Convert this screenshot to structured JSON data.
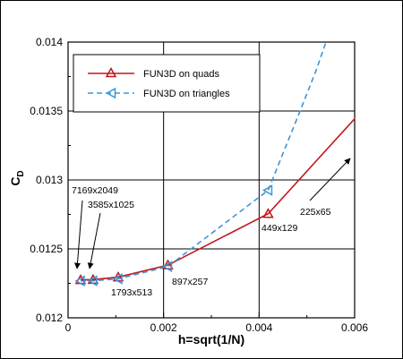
{
  "chart_data": {
    "type": "line",
    "xlabel": "h=sqrt(1/N)",
    "ylabel_main": "C",
    "ylabel_sub": "D",
    "xlim": [
      0,
      0.006
    ],
    "ylim": [
      0.012,
      0.014
    ],
    "x_ticks": [
      0,
      0.002,
      0.004,
      0.006
    ],
    "x_tick_labels": [
      "0",
      "0.002",
      "0.004",
      "0.006"
    ],
    "y_ticks": [
      0.012,
      0.0125,
      0.013,
      0.0135,
      0.014
    ],
    "y_tick_labels": [
      "0.012",
      "0.0125",
      "0.013",
      "0.0135",
      "0.014"
    ],
    "grid": true,
    "legend_position": "top-left",
    "series": [
      {
        "name": "FUN3D on quads",
        "color": "#c0161c",
        "line_style": "solid",
        "marker": "triangle-up",
        "x": [
          0.000262,
          0.000524,
          0.00105,
          0.00209,
          0.00419,
          0.0062
        ],
        "y": [
          0.012275,
          0.012277,
          0.012295,
          0.012382,
          0.012755,
          0.01352
        ],
        "marker_count": 5
      },
      {
        "name": "FUN3D on triangles",
        "color": "#3a97d8",
        "line_style": "dashed",
        "marker": "triangle-left",
        "x": [
          0.000262,
          0.000524,
          0.00105,
          0.00209,
          0.00419,
          0.00445,
          0.0048,
          0.0052,
          0.0054
        ],
        "y": [
          0.012268,
          0.012268,
          0.012283,
          0.012372,
          0.012925,
          0.01315,
          0.01345,
          0.0138,
          0.014
        ],
        "marker_count": 5
      }
    ],
    "annotations": [
      {
        "text": "7169x2049"
      },
      {
        "text": "3585x1025"
      },
      {
        "text": "1793x513"
      },
      {
        "text": "897x257"
      },
      {
        "text": "449x129"
      },
      {
        "text": "225x65"
      }
    ]
  }
}
